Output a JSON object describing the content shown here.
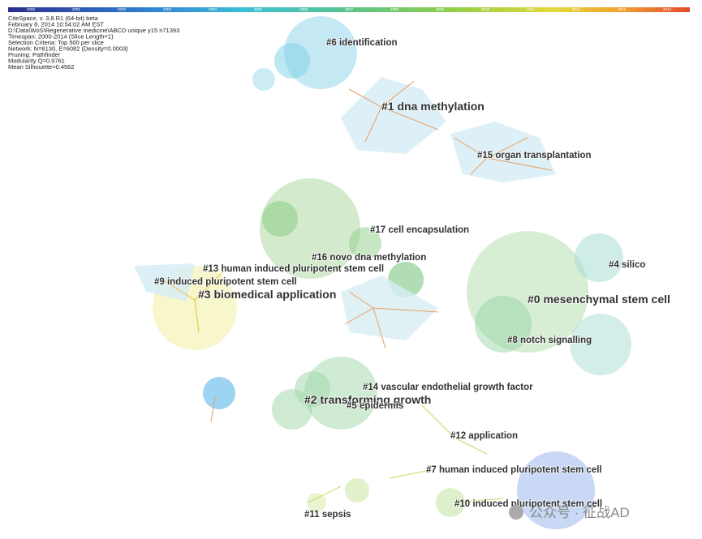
{
  "header": {
    "lines": [
      "CiteSpace, v. 3.8.R1 (64-bit) beta",
      "February 8, 2014 10:54:02 AM EST",
      "D:\\Data\\WoS\\Regenerative medicine\\ABCD unique y15 n71393",
      "Timespan: 2000-2014 (Slice Length=1)",
      "Selection Criteria: Top 500 per slice",
      "Network: N=6130, E=6082 (Density=0.0003)",
      "Pruning: Pathfinder",
      "Modularity Q=0.9761",
      "Mean Silhouette=0.4562"
    ]
  },
  "timeline": {
    "years": [
      "2000",
      "2001",
      "2002",
      "2003",
      "2004",
      "2005",
      "2006",
      "2007",
      "2008",
      "2009",
      "2010",
      "2011",
      "2012",
      "2013",
      "2014"
    ]
  },
  "clusters": [
    {
      "label": "#6 identification"
    },
    {
      "label": "#1 dna methylation"
    },
    {
      "label": "#15 organ transplantation"
    },
    {
      "label": "#17 cell encapsulation"
    },
    {
      "label": "#16 novo dna methylation"
    },
    {
      "label": "#13 human induced pluripotent stem cell"
    },
    {
      "label": "#9 induced pluripotent stem cell"
    },
    {
      "label": "#3 biomedical application"
    },
    {
      "label": "#4 silico"
    },
    {
      "label": "#0 mesenchymal stem cell"
    },
    {
      "label": "#8 notch signalling"
    },
    {
      "label": "#14 vascular endothelial growth factor"
    },
    {
      "label": "#2 transforming growth"
    },
    {
      "label": "#5 epidermis"
    },
    {
      "label": "#12 application"
    },
    {
      "label": "#7 human induced pluripotent stem cell"
    },
    {
      "label": "#10 induced pluripotent stem cell"
    },
    {
      "label": "#11 sepsis"
    }
  ],
  "watermark": {
    "text": "公众号 · 征战AD"
  }
}
